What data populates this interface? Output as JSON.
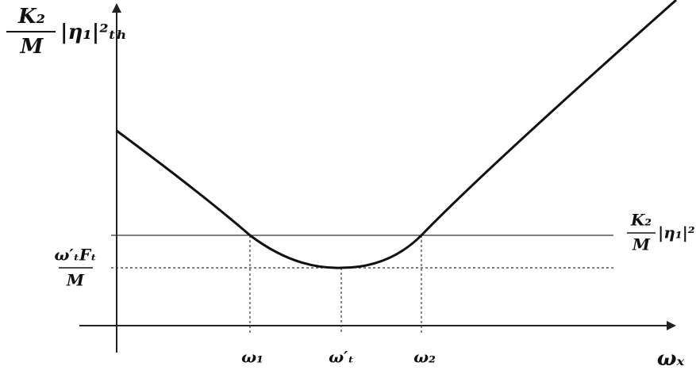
{
  "y_axis_label": {
    "numerator": "K₂",
    "denominator": "M",
    "factor": "|η₁|²ₜₕ"
  },
  "x_axis_label": "ωₓ",
  "x_marks": [
    "ω₁",
    "ω′ₜ",
    "ω₂"
  ],
  "level_upper": {
    "numerator": "K₂",
    "denominator": "M",
    "factor": "|η₁|²"
  },
  "level_lower": {
    "numerator": "ω′ₜFₜ",
    "denominator": "M"
  }
}
